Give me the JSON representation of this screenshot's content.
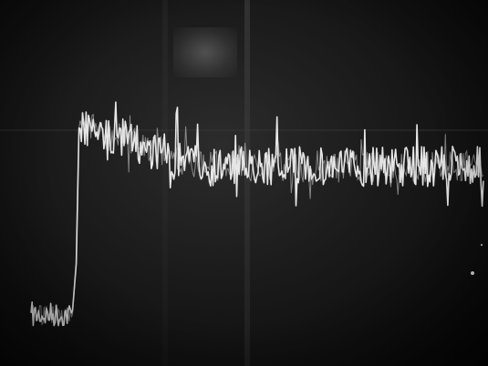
{
  "image": {
    "kind": "oscilloscope-photograph",
    "trace_color": "#f2f2f2",
    "background_color": "#111111",
    "trace": {
      "low_level_fraction": 0.88,
      "high_level_fraction": 0.38,
      "step_start_fraction": 0.16
    }
  }
}
